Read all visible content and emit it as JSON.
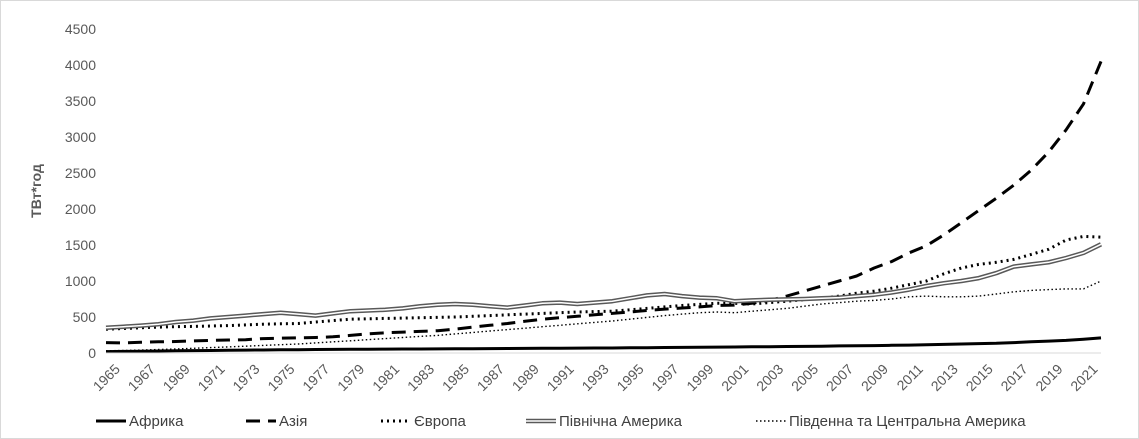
{
  "chart_data": {
    "type": "line",
    "ylabel": "ТВт*год",
    "xlabel": "",
    "ylim": [
      0,
      4500
    ],
    "yticks": [
      0,
      500,
      1000,
      1500,
      2000,
      2500,
      3000,
      3500,
      4000,
      4500
    ],
    "grid": false,
    "legend": "bottom",
    "x": [
      1965,
      1966,
      1967,
      1968,
      1969,
      1970,
      1971,
      1972,
      1973,
      1974,
      1975,
      1976,
      1977,
      1978,
      1979,
      1980,
      1981,
      1982,
      1983,
      1984,
      1985,
      1986,
      1987,
      1988,
      1989,
      1990,
      1991,
      1992,
      1993,
      1994,
      1995,
      1996,
      1997,
      1998,
      1999,
      2000,
      2001,
      2002,
      2003,
      2004,
      2005,
      2006,
      2007,
      2008,
      2009,
      2010,
      2011,
      2012,
      2013,
      2014,
      2015,
      2016,
      2017,
      2018,
      2019,
      2020,
      2021,
      2022
    ],
    "xtick_labels": [
      "1965",
      "1967",
      "1969",
      "1971",
      "1973",
      "1975",
      "1977",
      "1979",
      "1981",
      "1983",
      "1985",
      "1987",
      "1989",
      "1991",
      "1993",
      "1995",
      "1997",
      "1999",
      "2001",
      "2003",
      "2005",
      "2007",
      "2009",
      "2011",
      "2013",
      "2015",
      "2017",
      "2019",
      "2021"
    ],
    "series": [
      {
        "name": "Африка",
        "style": "solid-thick",
        "values": [
          20,
          22,
          25,
          28,
          30,
          33,
          35,
          38,
          40,
          42,
          44,
          46,
          48,
          50,
          52,
          53,
          54,
          55,
          56,
          57,
          58,
          60,
          61,
          63,
          64,
          66,
          67,
          68,
          69,
          70,
          72,
          74,
          76,
          78,
          80,
          82,
          84,
          86,
          88,
          90,
          92,
          95,
          98,
          100,
          103,
          107,
          110,
          115,
          120,
          125,
          130,
          135,
          145,
          155,
          165,
          175,
          190,
          210
        ]
      },
      {
        "name": "Азія",
        "style": "dashed",
        "values": [
          145,
          140,
          148,
          155,
          160,
          168,
          175,
          180,
          185,
          200,
          205,
          210,
          215,
          225,
          245,
          265,
          280,
          290,
          300,
          310,
          330,
          360,
          385,
          410,
          440,
          470,
          490,
          510,
          530,
          550,
          570,
          590,
          610,
          625,
          640,
          660,
          665,
          690,
          730,
          790,
          860,
          930,
          1000,
          1070,
          1180,
          1270,
          1390,
          1490,
          1640,
          1810,
          1980,
          2150,
          2330,
          2540,
          2790,
          3100,
          3460,
          4050
        ]
      },
      {
        "name": "Європа",
        "style": "dotted",
        "values": [
          330,
          340,
          350,
          360,
          365,
          370,
          375,
          380,
          390,
          400,
          405,
          410,
          430,
          450,
          470,
          475,
          480,
          485,
          490,
          495,
          500,
          510,
          520,
          530,
          540,
          550,
          560,
          570,
          575,
          580,
          600,
          620,
          640,
          660,
          675,
          690,
          690,
          680,
          700,
          720,
          740,
          760,
          790,
          830,
          860,
          900,
          950,
          1000,
          1100,
          1180,
          1230,
          1260,
          1300,
          1370,
          1440,
          1570,
          1620,
          1610
        ]
      },
      {
        "name": "Північна Америка",
        "style": "double",
        "values": [
          350,
          365,
          380,
          400,
          430,
          450,
          480,
          500,
          520,
          540,
          560,
          540,
          520,
          550,
          580,
          590,
          600,
          620,
          650,
          670,
          680,
          670,
          650,
          630,
          660,
          690,
          700,
          680,
          700,
          720,
          760,
          800,
          820,
          790,
          770,
          760,
          720,
          730,
          740,
          745,
          750,
          760,
          770,
          790,
          810,
          840,
          880,
          930,
          970,
          1000,
          1040,
          1110,
          1200,
          1230,
          1260,
          1320,
          1390,
          1510
        ]
      },
      {
        "name": "Південна та Центральна Америка",
        "style": "dotted-thin",
        "values": [
          30,
          35,
          40,
          48,
          55,
          65,
          75,
          85,
          95,
          105,
          115,
          125,
          140,
          155,
          170,
          185,
          200,
          215,
          230,
          245,
          265,
          285,
          305,
          325,
          345,
          365,
          385,
          405,
          425,
          445,
          470,
          495,
          520,
          540,
          560,
          570,
          560,
          580,
          600,
          620,
          650,
          680,
          700,
          720,
          730,
          750,
          780,
          790,
          780,
          780,
          790,
          820,
          850,
          870,
          880,
          890,
          890,
          1000
        ]
      }
    ]
  }
}
